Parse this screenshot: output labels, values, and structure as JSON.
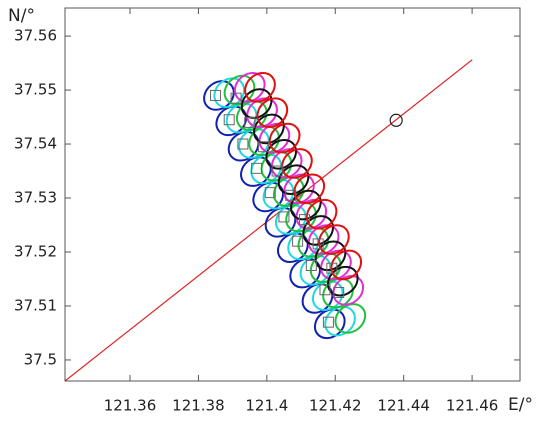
{
  "chart_data": {
    "type": "scatter",
    "x_label": "E/°",
    "y_label": "N/°",
    "xlim": [
      121.341,
      121.474
    ],
    "ylim": [
      37.4961,
      37.5652
    ],
    "xticks": [
      121.36,
      121.38,
      121.4,
      121.42,
      121.44,
      121.46
    ],
    "yticks": [
      37.5,
      37.51,
      37.52,
      37.53,
      37.54,
      37.55,
      37.56
    ],
    "line": {
      "color": "#e02020",
      "x": [
        121.341,
        121.46
      ],
      "y": [
        37.4961,
        37.5556
      ]
    },
    "circle": {
      "x": 121.4378,
      "y": 37.5444
    },
    "series": [
      {
        "color": "#1020b0",
        "x": [
          121.386,
          121.3896,
          121.3932,
          121.3968,
          121.4004,
          121.404,
          121.4076,
          121.4112,
          121.4148,
          121.4184
        ],
        "y": [
          37.549,
          37.5443,
          37.5396,
          37.5349,
          37.5302,
          37.5255,
          37.5208,
          37.5161,
          37.5114,
          37.5067
        ]
      },
      {
        "color": "#20d8e0",
        "x": [
          121.389,
          121.3926,
          121.3962,
          121.3998,
          121.4034,
          121.407,
          121.4106,
          121.4142,
          121.4178,
          121.4214
        ],
        "y": [
          37.5495,
          37.5448,
          37.5401,
          37.5354,
          37.5307,
          37.526,
          37.5213,
          37.5166,
          37.5119,
          37.5072
        ]
      },
      {
        "color": "#20c040",
        "x": [
          121.392,
          121.3956,
          121.3992,
          121.4028,
          121.4064,
          121.41,
          121.4136,
          121.4172,
          121.4208,
          121.4244
        ],
        "y": [
          37.55,
          37.5453,
          37.5406,
          37.5359,
          37.5312,
          37.5265,
          37.5218,
          37.5171,
          37.5124,
          37.5077
        ]
      },
      {
        "color": "#e030d0",
        "x": [
          121.395,
          121.3986,
          121.4022,
          121.4058,
          121.4094,
          121.413,
          121.4166,
          121.4202,
          121.4238
        ],
        "y": [
          37.5505,
          37.5458,
          37.5411,
          37.5364,
          37.5317,
          37.527,
          37.5223,
          37.5176,
          37.5129
        ]
      },
      {
        "color": "#111111",
        "x": [
          121.397,
          121.4006,
          121.4042,
          121.4078,
          121.4114,
          121.415,
          121.4186,
          121.4222
        ],
        "y": [
          37.5475,
          37.5428,
          37.5381,
          37.5334,
          37.5287,
          37.524,
          37.5193,
          37.5146
        ]
      },
      {
        "color": "#e01010",
        "x": [
          121.398,
          121.4016,
          121.4052,
          121.4088,
          121.4124,
          121.416,
          121.4196,
          121.4232
        ],
        "y": [
          37.5505,
          37.5458,
          37.5411,
          37.5364,
          37.5317,
          37.527,
          37.5223,
          37.5176
        ]
      }
    ],
    "squares": {
      "x": [
        121.385,
        121.391,
        121.389,
        121.395,
        121.393,
        121.399,
        121.397,
        121.403,
        121.401,
        121.407,
        121.405,
        121.411,
        121.409,
        121.415,
        121.413,
        121.419,
        121.417,
        121.421,
        121.418
      ],
      "y": [
        37.549,
        37.5485,
        37.5445,
        37.544,
        37.54,
        37.5395,
        37.5355,
        37.535,
        37.531,
        37.5305,
        37.5265,
        37.526,
        37.522,
        37.5215,
        37.5175,
        37.517,
        37.513,
        37.5125,
        37.507
      ]
    }
  }
}
